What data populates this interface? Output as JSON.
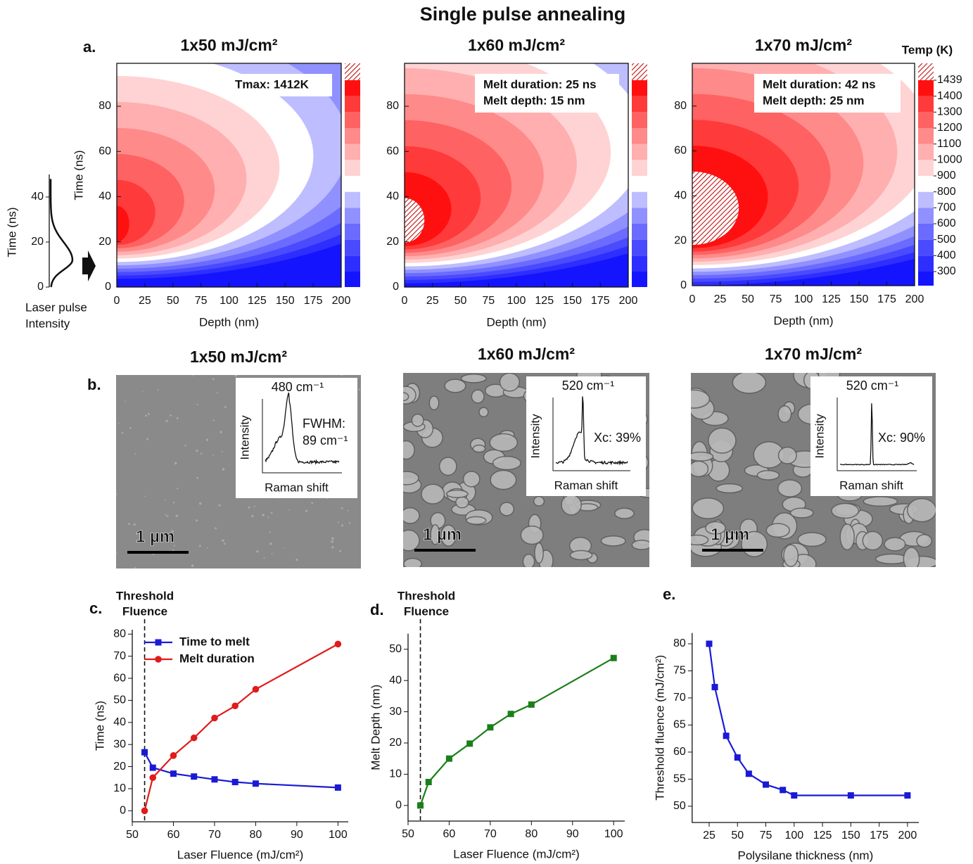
{
  "title": "Single pulse annealing",
  "panel_a": {
    "label": "a.",
    "colorbar": {
      "title": "Temp (K)",
      "ticks": [
        300,
        400,
        500,
        600,
        700,
        800,
        900,
        1000,
        1100,
        1200,
        1300,
        1400,
        1439
      ]
    },
    "pulse": {
      "ylabel": "Time (ns)",
      "ylim": [
        0,
        50
      ],
      "yticks": [
        0,
        20,
        40
      ],
      "xlabel": [
        "Laser pulse",
        "Intensity"
      ]
    },
    "plots": [
      {
        "title": "1x50 mJ/cm²",
        "annotation": [
          "Tmax: 1412K"
        ],
        "xlabel": "Depth (nm)",
        "ylabel": "Time (ns)",
        "xlim": [
          0,
          200
        ],
        "ylim": [
          0,
          99
        ],
        "xticks": [
          0,
          25,
          50,
          75,
          100,
          125,
          150,
          175,
          200
        ],
        "yticks": [
          0,
          20,
          40,
          60,
          80
        ]
      },
      {
        "title": "1x60 mJ/cm²",
        "annotation": [
          "Melt duration:  25 ns",
          "Melt depth:  15 nm"
        ],
        "xlabel": "Depth (nm)",
        "xlim": [
          0,
          200
        ],
        "ylim": [
          0,
          99
        ],
        "xticks": [
          0,
          25,
          50,
          75,
          100,
          125,
          150,
          175,
          200
        ],
        "yticks": [
          0,
          20,
          40,
          60,
          80
        ]
      },
      {
        "title": "1x70 mJ/cm²",
        "annotation": [
          "Melt duration:  42 ns",
          "Melt depth:  25 nm"
        ],
        "xlabel": "Depth (nm)",
        "xlim": [
          0,
          200
        ],
        "ylim": [
          0,
          99
        ],
        "xticks": [
          0,
          25,
          50,
          75,
          100,
          125,
          150,
          175,
          200
        ],
        "yticks": [
          0,
          20,
          40,
          60,
          80
        ]
      }
    ]
  },
  "panel_b": {
    "label": "b.",
    "images": [
      {
        "title": "1x50 mJ/cm²",
        "peak": "480 cm⁻¹",
        "note": [
          "FWHM:",
          "89 cm⁻¹"
        ],
        "ylabel": "Intensity",
        "xlabel": "Raman shift",
        "scale_bar": "1 µm"
      },
      {
        "title": "1x60 mJ/cm²",
        "peak": "520 cm⁻¹",
        "note": [
          "Xc: 39%"
        ],
        "ylabel": "Intensity",
        "xlabel": "Raman shift",
        "scale_bar": "1 µm"
      },
      {
        "title": "1x70 mJ/cm²",
        "peak": "520 cm⁻¹",
        "note": [
          "Xc: 90%"
        ],
        "ylabel": "Intensity",
        "xlabel": "Raman shift",
        "scale_bar": "1 µm"
      }
    ]
  },
  "chart_data": [
    {
      "type": "line",
      "label": "c.",
      "annotation": [
        "Threshold",
        "Fluence"
      ],
      "threshold": 53,
      "xlabel": "Laser Fluence (mJ/cm²)",
      "ylabel": "Time (ns)",
      "x": [
        53,
        55,
        60,
        65,
        70,
        75,
        80,
        100
      ],
      "xlim": [
        50,
        102.5
      ],
      "xticks": [
        50,
        60,
        70,
        80,
        90,
        100
      ],
      "ylim": [
        -5,
        82
      ],
      "yticks": [
        0,
        10,
        20,
        30,
        40,
        50,
        60,
        70,
        80
      ],
      "legend": "upper left",
      "series": [
        {
          "name": "Time to melt",
          "color": "#1a1ad6",
          "marker": "square",
          "values": [
            26.5,
            19.5,
            16.8,
            15.5,
            14.2,
            13,
            12.3,
            10.5
          ]
        },
        {
          "name": "Melt duration",
          "color": "#e01b1b",
          "marker": "circle",
          "values": [
            0,
            15,
            25,
            33,
            42,
            47.5,
            55,
            75.5
          ]
        }
      ]
    },
    {
      "type": "line",
      "label": "d.",
      "annotation": [
        "Threshold",
        "Fluence"
      ],
      "threshold": 53,
      "xlabel": "Laser Fluence (mJ/cm²)",
      "ylabel": "Melt Depth (nm)",
      "x": [
        53,
        55,
        60,
        65,
        70,
        75,
        80,
        100
      ],
      "xlim": [
        50,
        102.7
      ],
      "xticks": [
        50,
        60,
        70,
        80,
        90,
        100
      ],
      "ylim": [
        -5,
        55
      ],
      "yticks": [
        0,
        10,
        20,
        30,
        40,
        50
      ],
      "series": [
        {
          "color": "#1a7f1a",
          "marker": "square",
          "values": [
            0,
            7.5,
            15,
            19.8,
            25,
            29.3,
            32.3,
            47.2
          ]
        }
      ]
    },
    {
      "type": "line",
      "label": "e.",
      "xlabel": "Polysilane thickness (nm)",
      "ylabel": "Threshold fluence (mJ/cm²)",
      "x": [
        25,
        30,
        40,
        50,
        60,
        75,
        90,
        100,
        150,
        200
      ],
      "xlim": [
        10,
        210
      ],
      "xticks": [
        25,
        50,
        75,
        100,
        125,
        150,
        175,
        200
      ],
      "ylim": [
        47,
        82
      ],
      "yticks": [
        50,
        55,
        60,
        65,
        70,
        75,
        80
      ],
      "series": [
        {
          "color": "#1a1ad6",
          "marker": "square",
          "values": [
            80,
            72,
            63,
            59,
            56,
            54,
            53,
            52,
            52,
            52
          ]
        }
      ]
    }
  ]
}
